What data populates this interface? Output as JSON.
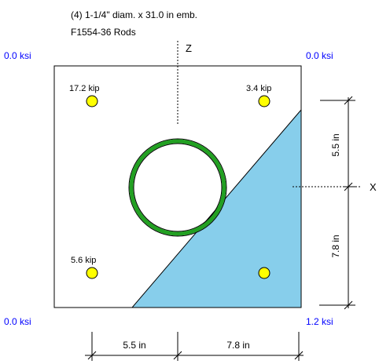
{
  "header": {
    "line1": "(4) 1-1/4\" diam. x 31.0 in emb.",
    "line2": "F1554-36 Rods"
  },
  "corner_stress": {
    "top_left": "0.0 ksi",
    "top_right": "0.0 ksi",
    "bottom_left": "0.0 ksi",
    "bottom_right": "1.2 ksi"
  },
  "rod_loads": {
    "top_left": "17.2 kip",
    "top_right": "3.4 kip",
    "bottom_left": "5.6 kip",
    "bottom_right": ""
  },
  "axes": {
    "z": "Z",
    "x": "X"
  },
  "dimensions": {
    "bottom_left": "5.5 in",
    "bottom_right": "7.8 in",
    "right_top": "5.5 in",
    "right_bottom": "7.8 in"
  },
  "colors": {
    "plate_outline": "#000000",
    "compression_zone": "#87CEEB",
    "column_ring": "#22a022",
    "rod_fill": "#ffff00",
    "stress_text": "#0000ff"
  }
}
